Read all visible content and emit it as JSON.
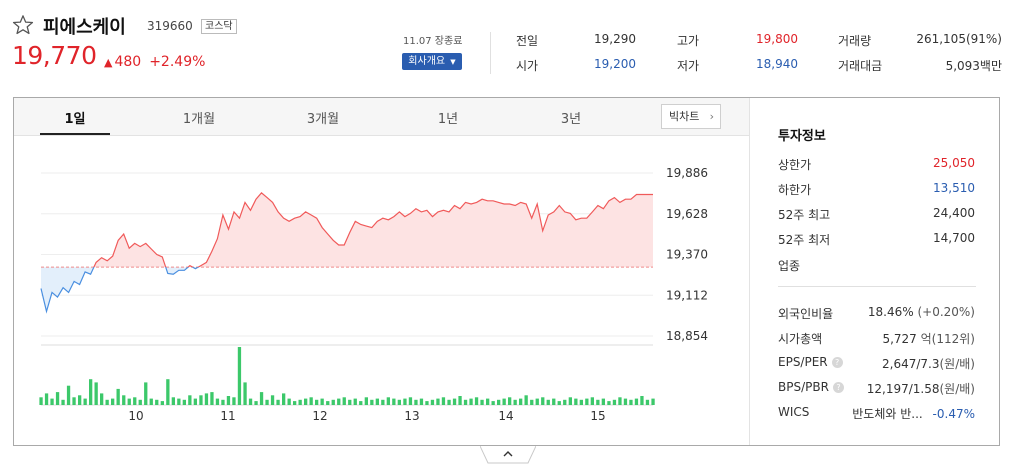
{
  "stock": {
    "name": "피에스케이",
    "code": "319660",
    "market": "코스닥",
    "price": "19,770",
    "change": "480",
    "change_rate": "+2.49%",
    "as_of": "11.07 장종료",
    "company_button": "회사개요"
  },
  "quote": {
    "prev_close_label": "전일",
    "prev_close": "19,290",
    "open_label": "시가",
    "open": "19,200",
    "high_label": "고가",
    "high": "19,800",
    "low_label": "저가",
    "low": "18,940",
    "volume_label": "거래량",
    "volume": "261,105(91%)",
    "amount_label": "거래대금",
    "amount": "5,093백만"
  },
  "tabs": [
    "1일",
    "1개월",
    "3개월",
    "1년",
    "3년"
  ],
  "active_tab": "1일",
  "bigchart_label": "빅차트",
  "panel": {
    "title": "투자정보",
    "rows": [
      {
        "label": "상한가",
        "value": "25,050",
        "color": "#e0242a"
      },
      {
        "label": "하한가",
        "value": "13,510",
        "color": "#2a5db0"
      },
      {
        "label": "52주 최고",
        "value": "24,400",
        "color": "#333333"
      },
      {
        "label": "52주 최저",
        "value": "14,700",
        "color": "#333333"
      },
      {
        "label": "업종",
        "value": "",
        "color": "#333333"
      }
    ],
    "foreign_label": "외국인비율",
    "foreign_value": "18.46%",
    "foreign_change": "(+0.20%)",
    "marketcap_label": "시가총액",
    "marketcap_value": "5,727",
    "marketcap_unit": "억(112위)",
    "eps_label": "EPS/PER",
    "eps_value": "2,647/7.3",
    "eps_unit": "(원/배)",
    "bps_label": "BPS/PBR",
    "bps_value": "12,197/1.58",
    "bps_unit": "(원/배)",
    "wics_label": "WICS",
    "wics_value": "반도체와 반...",
    "wics_change": "-0.47%"
  },
  "chart_data": {
    "type": "line",
    "y_ticks": [
      "19,886",
      "19,628",
      "19,370",
      "19,112",
      "18,854"
    ],
    "ylim": [
      18854,
      19886
    ],
    "baseline": 19290,
    "x_ticks": [
      "10",
      "11",
      "12",
      "13",
      "14",
      "15"
    ],
    "prices": [
      19155,
      19010,
      19130,
      19100,
      19160,
      19130,
      19200,
      19180,
      19260,
      19245,
      19320,
      19350,
      19330,
      19360,
      19460,
      19500,
      19410,
      19440,
      19420,
      19440,
      19405,
      19370,
      19355,
      19250,
      19245,
      19270,
      19270,
      19300,
      19280,
      19300,
      19320,
      19390,
      19470,
      19620,
      19530,
      19640,
      19600,
      19700,
      19650,
      19720,
      19760,
      19730,
      19700,
      19640,
      19600,
      19580,
      19600,
      19610,
      19640,
      19620,
      19600,
      19540,
      19500,
      19460,
      19430,
      19430,
      19510,
      19580,
      19560,
      19550,
      19540,
      19580,
      19600,
      19590,
      19610,
      19640,
      19610,
      19630,
      19660,
      19640,
      19650,
      19610,
      19640,
      19650,
      19640,
      19680,
      19660,
      19700,
      19690,
      19700,
      19720,
      19710,
      19710,
      19700,
      19690,
      19690,
      19680,
      19700,
      19690,
      19600,
      19690,
      19520,
      19620,
      19640,
      19680,
      19640,
      19630,
      19590,
      19600,
      19600,
      19640,
      19680,
      19660,
      19710,
      19730,
      19700,
      19720,
      19720,
      19750,
      19750,
      19750,
      19750
    ],
    "volumes": [
      12,
      18,
      10,
      20,
      8,
      30,
      12,
      15,
      10,
      40,
      35,
      18,
      8,
      10,
      25,
      15,
      10,
      12,
      8,
      35,
      10,
      8,
      6,
      40,
      12,
      10,
      8,
      15,
      10,
      15,
      18,
      20,
      10,
      8,
      14,
      12,
      90,
      35,
      10,
      6,
      20,
      8,
      15,
      8,
      18,
      10,
      6,
      8,
      10,
      12,
      8,
      10,
      6,
      8,
      10,
      12,
      8,
      10,
      6,
      12,
      8,
      10,
      8,
      12,
      10,
      8,
      10,
      12,
      8,
      10,
      6,
      8,
      10,
      12,
      8,
      10,
      14,
      8,
      10,
      12,
      8,
      10,
      6,
      8,
      10,
      12,
      8,
      10,
      15,
      8,
      10,
      12,
      8,
      10,
      6,
      8,
      12,
      10,
      8,
      10,
      12,
      8,
      10,
      6,
      8,
      12,
      10,
      8,
      10,
      14,
      8,
      10
    ]
  }
}
